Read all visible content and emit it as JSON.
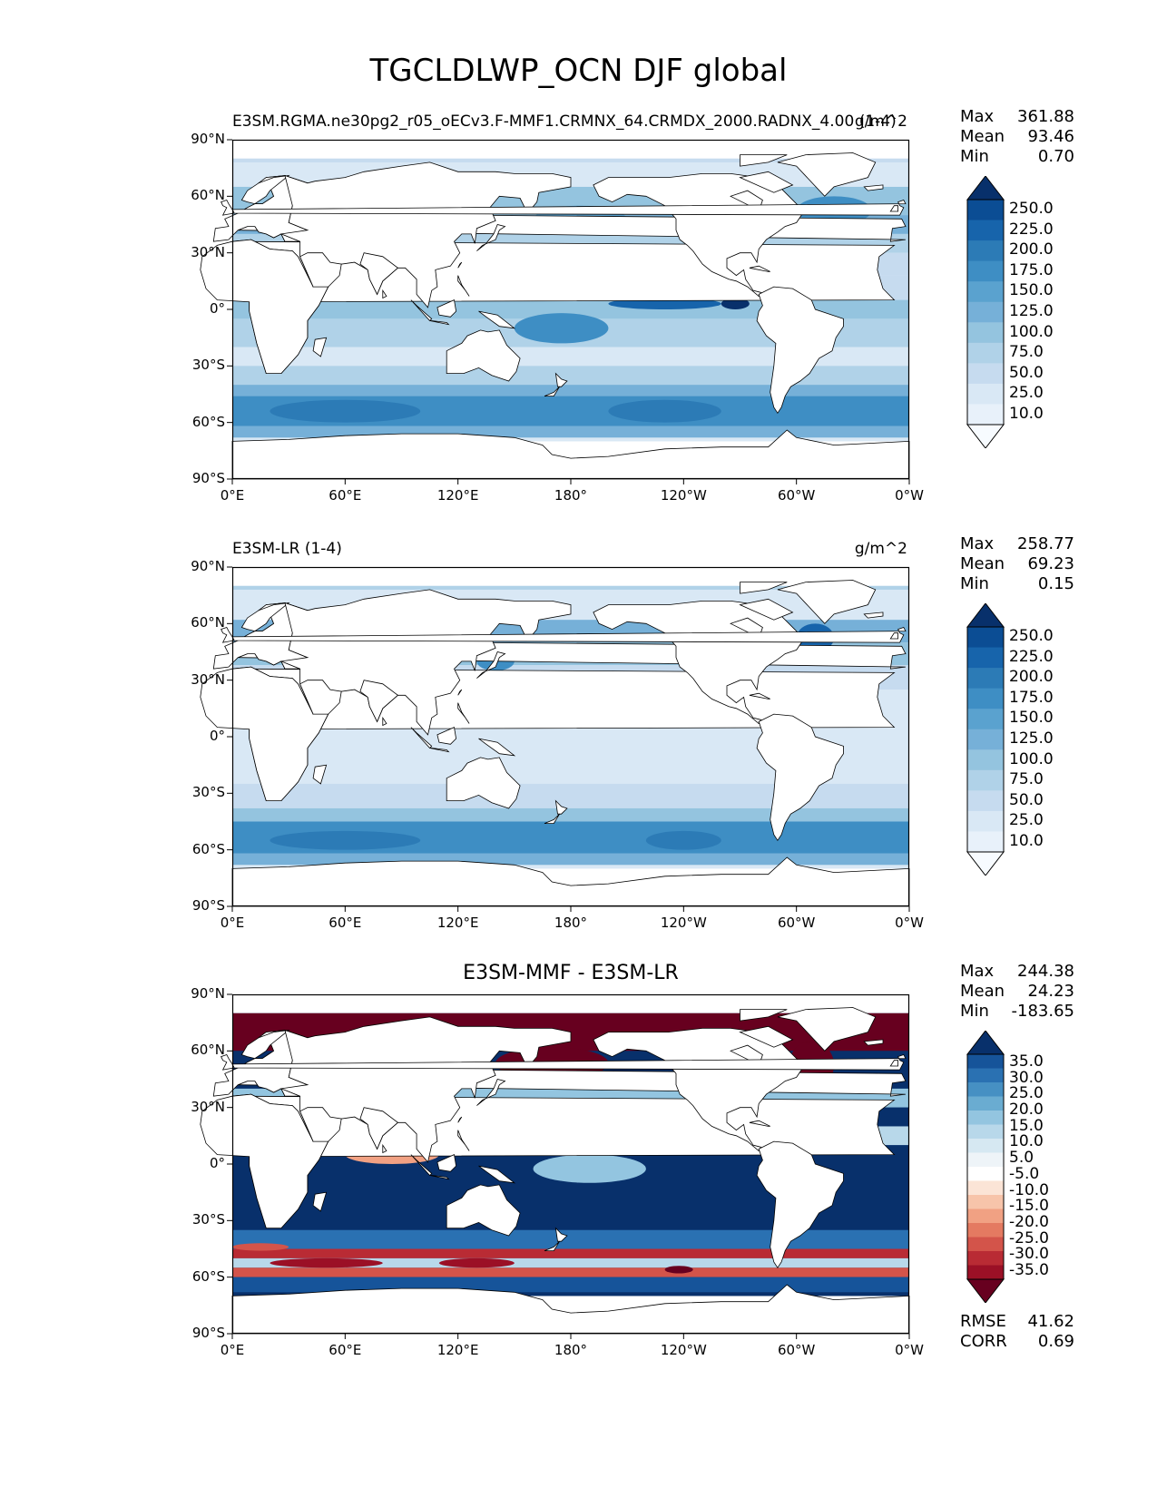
{
  "figure": {
    "title": "TGCLDLWP_OCN DJF global"
  },
  "map": {
    "lat_ticks": [
      "90°N",
      "60°N",
      "30°N",
      "0°",
      "30°S",
      "60°S",
      "90°S"
    ],
    "lon_ticks": [
      "0°E",
      "60°E",
      "120°E",
      "180°",
      "120°W",
      "60°W",
      "0°W"
    ]
  },
  "panels": [
    {
      "left_title": "E3SM.RGMA.ne30pg2_r05_oECv3.F-MMF1.CRMNX_64.CRMDX_2000.RADNX_4.00 (1-4)",
      "right_title": "g/m^2",
      "stats": [
        {
          "label": "Max",
          "value": "361.88"
        },
        {
          "label": "Mean",
          "value": "93.46"
        },
        {
          "label": "Min",
          "value": "0.70"
        }
      ],
      "colorbar": {
        "cmap": "Blues",
        "labels": [
          "250.0",
          "225.0",
          "200.0",
          "175.0",
          "150.0",
          "125.0",
          "100.0",
          "75.0",
          "50.0",
          "25.0",
          "10.0"
        ]
      }
    },
    {
      "left_title": "E3SM-LR (1-4)",
      "right_title": "g/m^2",
      "stats": [
        {
          "label": "Max",
          "value": "258.77"
        },
        {
          "label": "Mean",
          "value": "69.23"
        },
        {
          "label": "Min",
          "value": "0.15"
        }
      ],
      "colorbar": {
        "cmap": "Blues",
        "labels": [
          "250.0",
          "225.0",
          "200.0",
          "175.0",
          "150.0",
          "125.0",
          "100.0",
          "75.0",
          "50.0",
          "25.0",
          "10.0"
        ]
      }
    },
    {
      "center_title": "E3SM-MMF - E3SM-LR",
      "stats": [
        {
          "label": "Max",
          "value": "244.38"
        },
        {
          "label": "Mean",
          "value": "24.23"
        },
        {
          "label": "Min",
          "value": "-183.65"
        }
      ],
      "colorbar": {
        "cmap": "RdBu",
        "labels": [
          "35.0",
          "30.0",
          "25.0",
          "20.0",
          "15.0",
          "10.0",
          "5.0",
          "-5.0",
          "-10.0",
          "-15.0",
          "-20.0",
          "-25.0",
          "-30.0",
          "-35.0"
        ]
      },
      "metrics": [
        {
          "label": "RMSE",
          "value": "41.62"
        },
        {
          "label": "CORR",
          "value": "0.69"
        }
      ]
    }
  ],
  "colors": {
    "blues": [
      "#f7fbff",
      "#e8f1fa",
      "#d9e8f5",
      "#c6dbef",
      "#b0d2e8",
      "#94c4df",
      "#76b0d8",
      "#5aa2cf",
      "#3e8ec4",
      "#2c7bb6",
      "#1764ab",
      "#0b4d94",
      "#08306b"
    ],
    "rdbu_pos": [
      "#eef4f8",
      "#d6e8f2",
      "#b8d8ea",
      "#93c5e0",
      "#6aacd1",
      "#4690c3",
      "#2a71b2",
      "#16549a",
      "#08306b"
    ],
    "rdbu_neg": [
      "#fbe4d6",
      "#f7c4aa",
      "#f1a183",
      "#e47a61",
      "#d3544a",
      "#b92b34",
      "#9b1026",
      "#67001f"
    ],
    "land": "#ffffff",
    "coast": "#000000"
  }
}
